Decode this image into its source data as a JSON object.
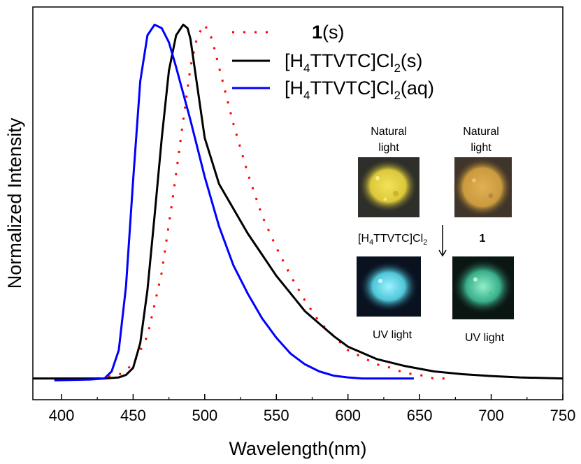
{
  "chart_data": {
    "type": "line",
    "xlabel": "Wavelength(nm)",
    "ylabel": "Normalized Intensity",
    "xlim": [
      380,
      750
    ],
    "ylim": [
      -0.06,
      1.05
    ],
    "x_ticks": [
      400,
      450,
      500,
      550,
      600,
      650,
      700,
      750
    ],
    "legend_position": "top-right",
    "series": [
      {
        "name": "1(s)",
        "name_bold_part": "1",
        "name_rest": "(s)",
        "color": "#ff0000",
        "style": "dotted",
        "x": [
          425,
          440,
          450,
          460,
          470,
          478,
          485,
          490,
          495,
          500,
          505,
          510,
          520,
          530,
          540,
          550,
          560,
          570,
          580,
          590,
          600,
          610,
          620,
          630,
          640,
          650,
          660,
          668
        ],
        "y": [
          0.0,
          0.01,
          0.04,
          0.12,
          0.3,
          0.52,
          0.73,
          0.88,
          0.97,
          1.0,
          0.96,
          0.88,
          0.72,
          0.58,
          0.46,
          0.37,
          0.29,
          0.22,
          0.16,
          0.12,
          0.08,
          0.06,
          0.04,
          0.03,
          0.015,
          0.01,
          0.0,
          0.0
        ]
      },
      {
        "name": "[H4TTVTC]Cl2(s)",
        "color": "#000000",
        "style": "solid",
        "x": [
          380,
          420,
          430,
          440,
          445,
          450,
          455,
          460,
          465,
          470,
          475,
          480,
          485,
          488,
          490,
          495,
          500,
          510,
          520,
          530,
          540,
          550,
          560,
          570,
          580,
          590,
          600,
          620,
          640,
          660,
          680,
          700,
          720,
          750
        ],
        "y": [
          0.0,
          0.0,
          0.0,
          0.003,
          0.01,
          0.03,
          0.1,
          0.25,
          0.46,
          0.68,
          0.87,
          0.97,
          1.0,
          0.99,
          0.96,
          0.82,
          0.68,
          0.55,
          0.48,
          0.41,
          0.35,
          0.29,
          0.24,
          0.19,
          0.155,
          0.12,
          0.09,
          0.055,
          0.035,
          0.02,
          0.012,
          0.007,
          0.003,
          0.0
        ]
      },
      {
        "name": "[H4TTVTC]Cl2(aq)",
        "color": "#0000ff",
        "style": "solid",
        "x": [
          395,
          420,
          430,
          435,
          440,
          445,
          450,
          455,
          460,
          465,
          470,
          475,
          480,
          490,
          500,
          510,
          520,
          530,
          540,
          550,
          560,
          570,
          580,
          590,
          600,
          610,
          620,
          630,
          646
        ],
        "y": [
          -0.005,
          -0.003,
          0.0,
          0.02,
          0.08,
          0.26,
          0.56,
          0.84,
          0.97,
          1.0,
          0.99,
          0.95,
          0.88,
          0.73,
          0.57,
          0.43,
          0.32,
          0.24,
          0.17,
          0.115,
          0.07,
          0.04,
          0.02,
          0.008,
          0.003,
          0.0,
          0.0,
          0.0,
          0.0
        ]
      }
    ]
  },
  "legend": {
    "items": [
      {
        "pre": "",
        "bold": "1",
        "post": "(s)"
      },
      {
        "pre": "[H",
        "sub1": "4",
        "mid": "TTVTC]Cl",
        "sub2": "2",
        "post": "(s)"
      },
      {
        "pre": "[H",
        "sub1": "4",
        "mid": "TTVTC]Cl",
        "sub2": "2",
        "post": "(aq)"
      }
    ]
  },
  "inset": {
    "top_left_label_1": "Natural",
    "top_left_label_2": "light",
    "top_right_label_1": "Natural",
    "top_right_label_2": "light",
    "left_compound_pre": "[H",
    "left_compound_sub1": "4",
    "left_compound_mid": "TTVTC]Cl",
    "left_compound_sub2": "2",
    "right_compound": "1",
    "bottom_left_label": "UV light",
    "bottom_right_label": "UV light",
    "colors": {
      "dark_bg": "#1a1a1a",
      "yellow_powder": "#e8d640",
      "orange_powder": "#d8a544",
      "cyan_glow": "#4fd0e0",
      "green_glow": "#3ec49a"
    }
  }
}
